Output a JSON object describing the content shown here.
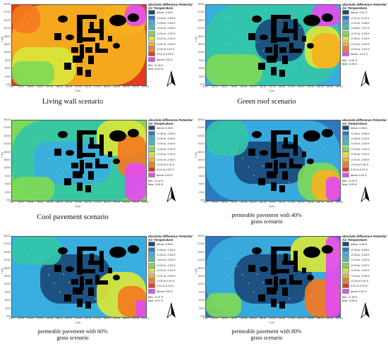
{
  "palette": {
    "below": "#1a4a7a",
    "c1": "#2a79c2",
    "c2": "#38aee0",
    "c3": "#33c6a8",
    "c4": "#7ed957",
    "c5": "#d9e63a",
    "c6": "#f6b21e",
    "c7": "#f57b1f",
    "c8": "#e53a1e",
    "c9": "#e9237d",
    "above": "#e44cf0",
    "building": "#000000",
    "tree": "#8fd36f"
  },
  "yticks": [
    "300.00",
    "270.00",
    "240.00",
    "210.00",
    "180.00",
    "150.00",
    "120.00",
    "90.00",
    "60.00",
    "30.00",
    "0.00"
  ],
  "xticks": [
    "0.00",
    "30.00",
    "60.00",
    "90.00",
    "120.00",
    "150.00",
    "180.00",
    "210.00",
    "240.00",
    "270.00",
    "300.00",
    "330.00",
    "360.00",
    "390.00",
    "420.00"
  ],
  "xaxis_label": "X (m)",
  "yaxis_label": "Y (m)",
  "panels": [
    {
      "id": "living-wall",
      "caption_lines": [
        "Living wall scenario"
      ],
      "legend_title": "absolute difference Potential Air Temperature",
      "legend": [
        "below -0.06 K",
        "-0.06 to -0.05 K",
        "-0.05 to -0.04 K",
        "-0.04 to -0.03 K",
        "-0.03 to -0.02 K",
        "-0.02 to -0.01 K",
        "-0.01 to -0.00 K",
        "-0.00 to 0.01 K",
        "0.01 to 0.02 K",
        "above 0.02 K"
      ],
      "min": "Min: -0.16 K",
      "max": "Max: 0.02 K",
      "base": "c8"
    },
    {
      "id": "green-roof",
      "caption_lines": [
        "Green roof scenario"
      ],
      "legend_title": "absolute difference Potential Air Temperature",
      "legend": [
        "below -0.11 K",
        "-0.11 to -0.10 K",
        "-0.10 to -0.08 K",
        "-0.08 to -0.07 K",
        "-0.07 to -0.05 K",
        "-0.05 to -0.04 K",
        "-0.04 to -0.02 K",
        "-0.02 to -0.01 K",
        "above -0.01 K"
      ],
      "min": "Min: -0.51 K",
      "max": "Max: 0.06 K",
      "base": "c2"
    },
    {
      "id": "cool-pavement",
      "caption_lines": [
        "Cool pavement scenario"
      ],
      "legend_title": "absolute difference Potential Air Temperature",
      "legend": [
        "below -0.06 K",
        "-0.06 to -0.05 K",
        "-0.05 to -0.04 K",
        "-0.04 to -0.03 K",
        "-0.03 to -0.02 K",
        "-0.02 to -0.01 K",
        "-0.01 to -0.00 K",
        "-0.00 to 0.01 K",
        "0.01 to 0.02 K",
        "above 0.02 K"
      ],
      "min": "Min: -0.12 K",
      "max": "Max: 0.05 K",
      "base": "c4"
    },
    {
      "id": "pavement-40",
      "caption_lines": [
        "permeable pavement with 40%",
        "grass scenario"
      ],
      "legend_title": "absolute difference Potential Air Temperature",
      "legend": [
        "below -0.06 K",
        "-0.06 to -0.05 K",
        "-0.05 to -0.04 K",
        "-0.04 to -0.03 K",
        "-0.03 to -0.02 K",
        "-0.02 to -0.01 K",
        "-0.01 to -0.00 K",
        "-0.00 to 0.01 K",
        "0.01 to 0.02 K",
        "above 0.02 K"
      ],
      "min": "Min: -0.31 K",
      "max": "Max: 0.09 K",
      "base": "c1"
    },
    {
      "id": "pavement-60",
      "caption_lines": [
        "permeable pavement with 60%",
        "grass scenario"
      ],
      "legend_title": "absolute difference Potential Air Temperature",
      "legend": [
        "below -0.06 K",
        "-0.06 to -0.05 K",
        "-0.05 to -0.04 K",
        "-0.04 to -0.03 K",
        "-0.03 to -0.02 K",
        "-0.02 to -0.01 K",
        "-0.01 to -0.00 K",
        "-0.00 to 0.01 K",
        "0.01 to 0.02 K",
        "above 0.02 K"
      ],
      "min": "Min: -0.37 K",
      "max": "Max: 0.07 K",
      "base": "c2"
    },
    {
      "id": "pavement-80",
      "caption_lines": [
        "permeable pavement with 80%",
        "grass scenario"
      ],
      "legend_title": "absolute difference Potential Air Temperature",
      "legend": [
        "below -0.06 K",
        "-0.06 to -0.05 K",
        "-0.05 to -0.04 K",
        "-0.04 to -0.03 K",
        "-0.03 to -0.02 K",
        "-0.02 to -0.01 K",
        "-0.01 to -0.00 K",
        "-0.00 to 0.01 K",
        "0.01 to 0.02 K",
        "above 0.02 K"
      ],
      "min": "Min: -0.39 K",
      "max": "Max: 0.06 K",
      "base": "c1"
    }
  ]
}
